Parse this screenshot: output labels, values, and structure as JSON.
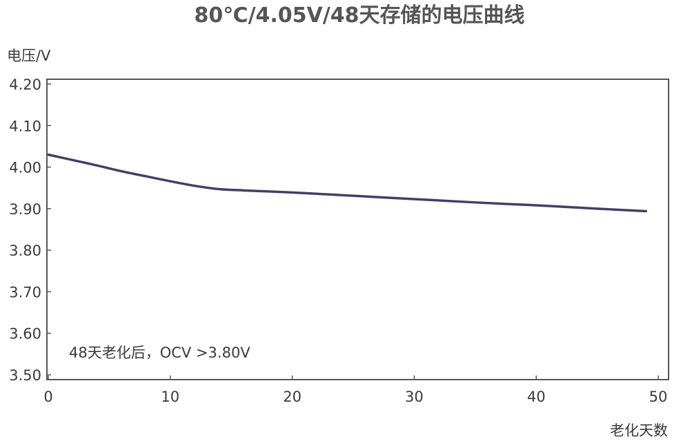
{
  "chart_data": {
    "type": "line",
    "title": "80℃/4.05V/48天存储的电压曲线",
    "xlabel": "老化天数",
    "ylabel": "电压/V",
    "xlim": [
      0,
      50
    ],
    "ylim": [
      3.5,
      4.2
    ],
    "x_ticks": [
      "0",
      "10",
      "20",
      "30",
      "40",
      "50"
    ],
    "y_ticks": [
      "4.20",
      "4.10",
      "4.00",
      "3.90",
      "3.80",
      "3.70",
      "3.60",
      "3.50"
    ],
    "grid": false,
    "legend": "none",
    "annotation": "48天老化后，OCV >3.80V",
    "colors": {
      "line": "#4b3a66",
      "axis": "#555555",
      "text": "#3a3a3a"
    },
    "series": [
      {
        "x": [
          0,
          2,
          4,
          6,
          8,
          10,
          12,
          14,
          16,
          20,
          25,
          30,
          35,
          40,
          45,
          49
        ],
        "values": [
          4.03,
          4.017,
          4.004,
          3.99,
          3.978,
          3.966,
          3.955,
          3.947,
          3.944,
          3.939,
          3.931,
          3.923,
          3.915,
          3.908,
          3.9,
          3.894
        ]
      }
    ]
  }
}
